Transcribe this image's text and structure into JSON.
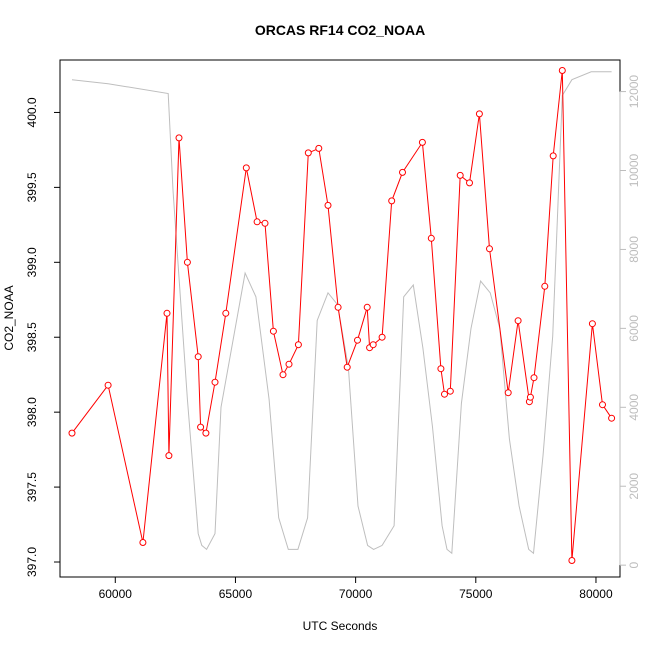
{
  "chart_data": {
    "type": "line",
    "title": "ORCAS RF14 CO2_NOAA",
    "xlabel": "UTC Seconds",
    "ylabel": "CO2_NOAA",
    "xlim": [
      57700,
      81000
    ],
    "ylim": [
      396.9,
      400.35
    ],
    "ylim_right": [
      -300,
      12800
    ],
    "x_ticks": [
      60000,
      65000,
      70000,
      75000,
      80000
    ],
    "y_ticks": [
      397.0,
      397.5,
      398.0,
      398.5,
      399.0,
      399.5,
      400.0
    ],
    "y_ticks_right": [
      0,
      2000,
      4000,
      6000,
      8000,
      10000,
      12000
    ],
    "grid": false,
    "series": [
      {
        "color": "#ff0000",
        "style": "line-with-circles",
        "axis": "left",
        "x": [
          58200,
          59700,
          61150,
          62150,
          62230,
          62650,
          63000,
          63450,
          63550,
          63770,
          64150,
          64600,
          65450,
          65900,
          66230,
          66580,
          66980,
          67230,
          67620,
          68030,
          68470,
          68850,
          69270,
          69650,
          70080,
          70480,
          70580,
          70730,
          71100,
          71500,
          71950,
          72780,
          73150,
          73550,
          73700,
          73940,
          74350,
          74740,
          75150,
          75570,
          76350,
          76760,
          77230,
          77270,
          77420,
          77870,
          78220,
          78600,
          79000,
          79850,
          80270,
          80650
        ],
        "y": [
          397.86,
          398.18,
          397.13,
          398.66,
          397.71,
          399.83,
          399.0,
          398.37,
          397.9,
          397.86,
          398.2,
          398.66,
          399.63,
          399.27,
          399.26,
          398.54,
          398.25,
          398.32,
          398.45,
          399.73,
          399.76,
          399.38,
          398.7,
          398.3,
          398.48,
          398.7,
          398.43,
          398.45,
          398.5,
          399.41,
          399.6,
          399.8,
          399.16,
          398.29,
          398.12,
          398.14,
          399.58,
          399.53,
          399.99,
          399.09,
          398.13,
          398.61,
          398.07,
          398.1,
          398.23,
          398.84,
          399.71,
          400.28,
          397.01,
          398.59,
          398.05,
          397.96
        ]
      },
      {
        "color": "#bebebe",
        "style": "line",
        "axis": "right",
        "x": [
          58200,
          59700,
          62200,
          62400,
          63000,
          63450,
          63600,
          63800,
          64150,
          64400,
          65400,
          65850,
          66400,
          66800,
          67200,
          67600,
          68000,
          68400,
          68850,
          69250,
          69700,
          70100,
          70500,
          70750,
          71100,
          71600,
          72000,
          72400,
          72800,
          73200,
          73600,
          73800,
          74000,
          74400,
          74800,
          75200,
          75600,
          76000,
          76400,
          76800,
          77200,
          77400,
          77800,
          78200,
          78600,
          79000,
          79800,
          80650
        ],
        "y": [
          12300,
          12200,
          11950,
          9500,
          4200,
          800,
          500,
          400,
          800,
          4000,
          7400,
          6800,
          4200,
          1200,
          400,
          400,
          1200,
          6200,
          6900,
          6600,
          5000,
          1500,
          500,
          400,
          500,
          1000,
          6800,
          7100,
          5500,
          3500,
          1000,
          400,
          300,
          4100,
          6000,
          7200,
          6900,
          6000,
          3200,
          1500,
          400,
          300,
          2800,
          5800,
          11900,
          12300,
          12500,
          12500
        ]
      }
    ]
  }
}
